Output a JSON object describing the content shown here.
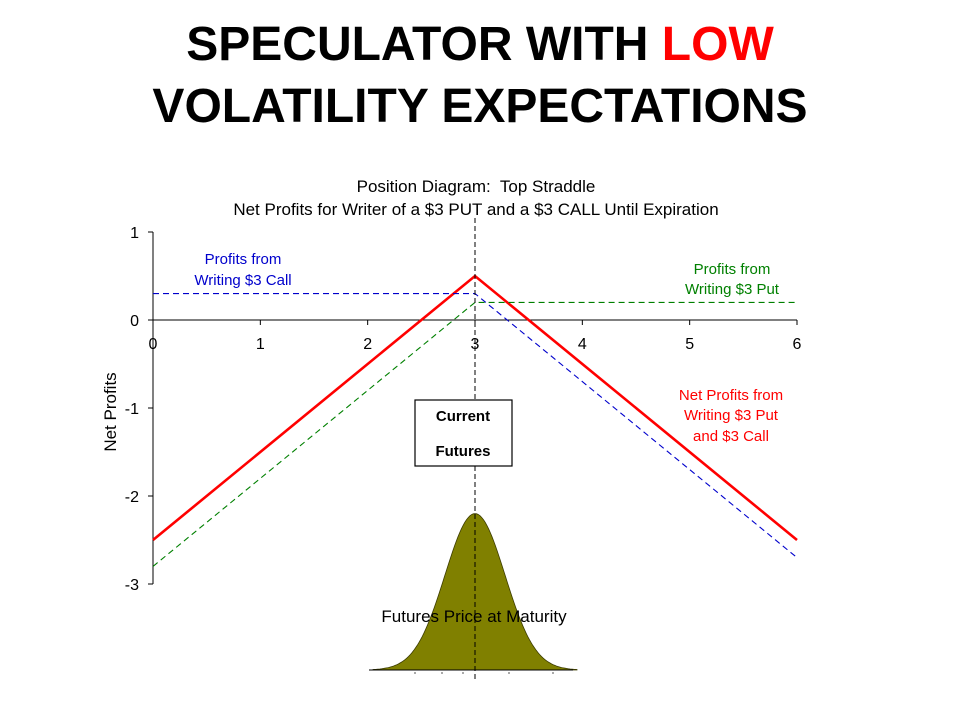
{
  "slide": {
    "title_line1_pre": "SPECULATOR WITH ",
    "title_line1_highlight": "LOW",
    "title_line2": "VOLATILITY EXPECTATIONS"
  },
  "colors": {
    "straddle": "#ff0000",
    "call": "#0000cc",
    "put": "#008000",
    "distribution": "#808000"
  },
  "chart_data": {
    "type": "line",
    "title": "Position Diagram:  Top Straddle",
    "subtitle": "Net Profits for Writer of a $3 PUT and a $3 CALL Until Expiration",
    "xlabel": "",
    "ylabel": "Net Profits",
    "xlim": [
      0,
      6
    ],
    "ylim": [
      -3,
      1
    ],
    "x_ticks": [
      "0",
      "1",
      "2",
      "3",
      "4",
      "5",
      "6"
    ],
    "y_ticks": [
      "1",
      "0",
      "-1",
      "-2",
      "-3"
    ],
    "series": [
      {
        "name": "Net Profits from Writing $3 Put and $3 Call",
        "style": "solid",
        "x": [
          0,
          3,
          6
        ],
        "y": [
          -2.5,
          0.5,
          -2.5
        ]
      },
      {
        "name": "Profits from Writing $3 Call",
        "style": "dashed",
        "x": [
          0,
          3,
          6
        ],
        "y": [
          0.3,
          0.3,
          -2.7
        ]
      },
      {
        "name": "Profits from Writing $3 Put",
        "style": "dashed",
        "x": [
          0,
          3,
          6
        ],
        "y": [
          -2.8,
          0.2,
          0.2
        ]
      }
    ],
    "annotations": {
      "call_line1": "Profits from",
      "call_line2": "Writing $3 Call",
      "put_line1": "Profits from",
      "put_line2": "Writing $3 Put",
      "net_line1": "Net Profits from",
      "net_line2": "Writing $3 Put",
      "net_line3": "and $3 Call",
      "box_line1": "Current",
      "box_line2": "Futures"
    },
    "current_futures": 3,
    "distribution": {
      "label": "Futures Price at Maturity",
      "mean": 3,
      "sd": 0.28,
      "peak_y": -2.2
    }
  }
}
